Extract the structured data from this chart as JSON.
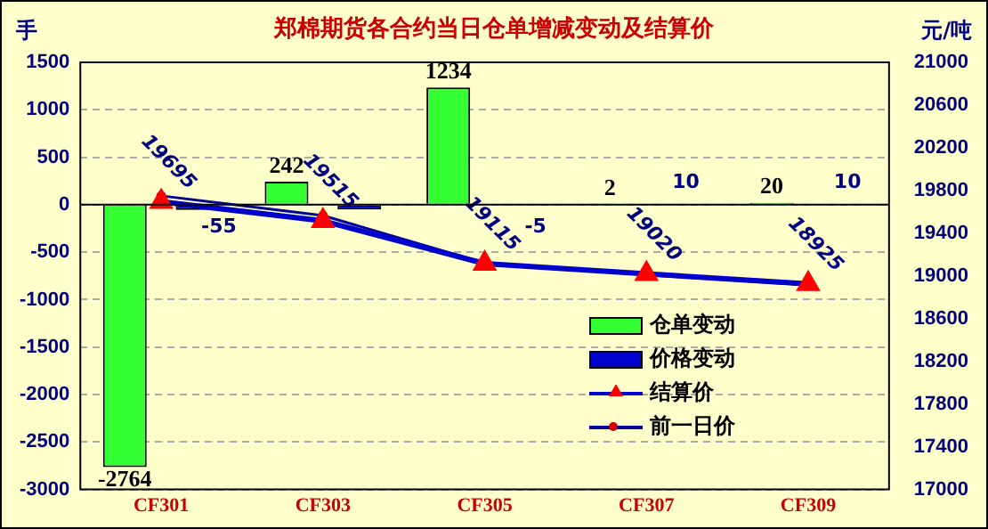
{
  "chart_data": {
    "type": "bar",
    "title": "郑棉期货各合约当日仓单增减变动及结算价",
    "ylabel": "手",
    "y2label": "元/吨",
    "categories": [
      "CF301",
      "CF303",
      "CF305",
      "CF307",
      "CF309"
    ],
    "series": [
      {
        "name": "仓单变动",
        "color": "#33ff33",
        "values": [
          -2764,
          242,
          1234,
          2,
          20
        ],
        "value_labels": [
          "-2764",
          "242",
          "1234",
          "2",
          "20"
        ]
      },
      {
        "name": "价格变动",
        "color": "#0000cc",
        "values": [
          -55,
          -50,
          -5,
          10,
          10
        ],
        "value_labels": [
          "-55",
          null,
          "-5",
          "10",
          "10"
        ]
      },
      {
        "name": "结算价",
        "type": "line",
        "axis": "y2",
        "color": "#0000cc",
        "marker": "triangle",
        "values": [
          19695,
          19515,
          19115,
          19020,
          18925
        ],
        "value_labels": [
          "19695",
          "19515",
          "19115",
          "19020",
          "18925"
        ]
      },
      {
        "name": "前一日价",
        "type": "line",
        "axis": "y2",
        "color": "#000099",
        "marker": "circle",
        "values": [
          19750,
          19565,
          19120,
          19010,
          18915
        ]
      }
    ],
    "ylim": [
      -3000,
      1500
    ],
    "yticks": [
      -3000,
      -2500,
      -2000,
      -1500,
      -1000,
      -500,
      0,
      500,
      1000,
      1500
    ],
    "y2lim": [
      17000,
      21000
    ],
    "y2ticks": [
      17000,
      17400,
      17800,
      18200,
      18600,
      19000,
      19400,
      19800,
      20200,
      20600,
      21000
    ],
    "grid": "y",
    "legend": "bottom right"
  }
}
